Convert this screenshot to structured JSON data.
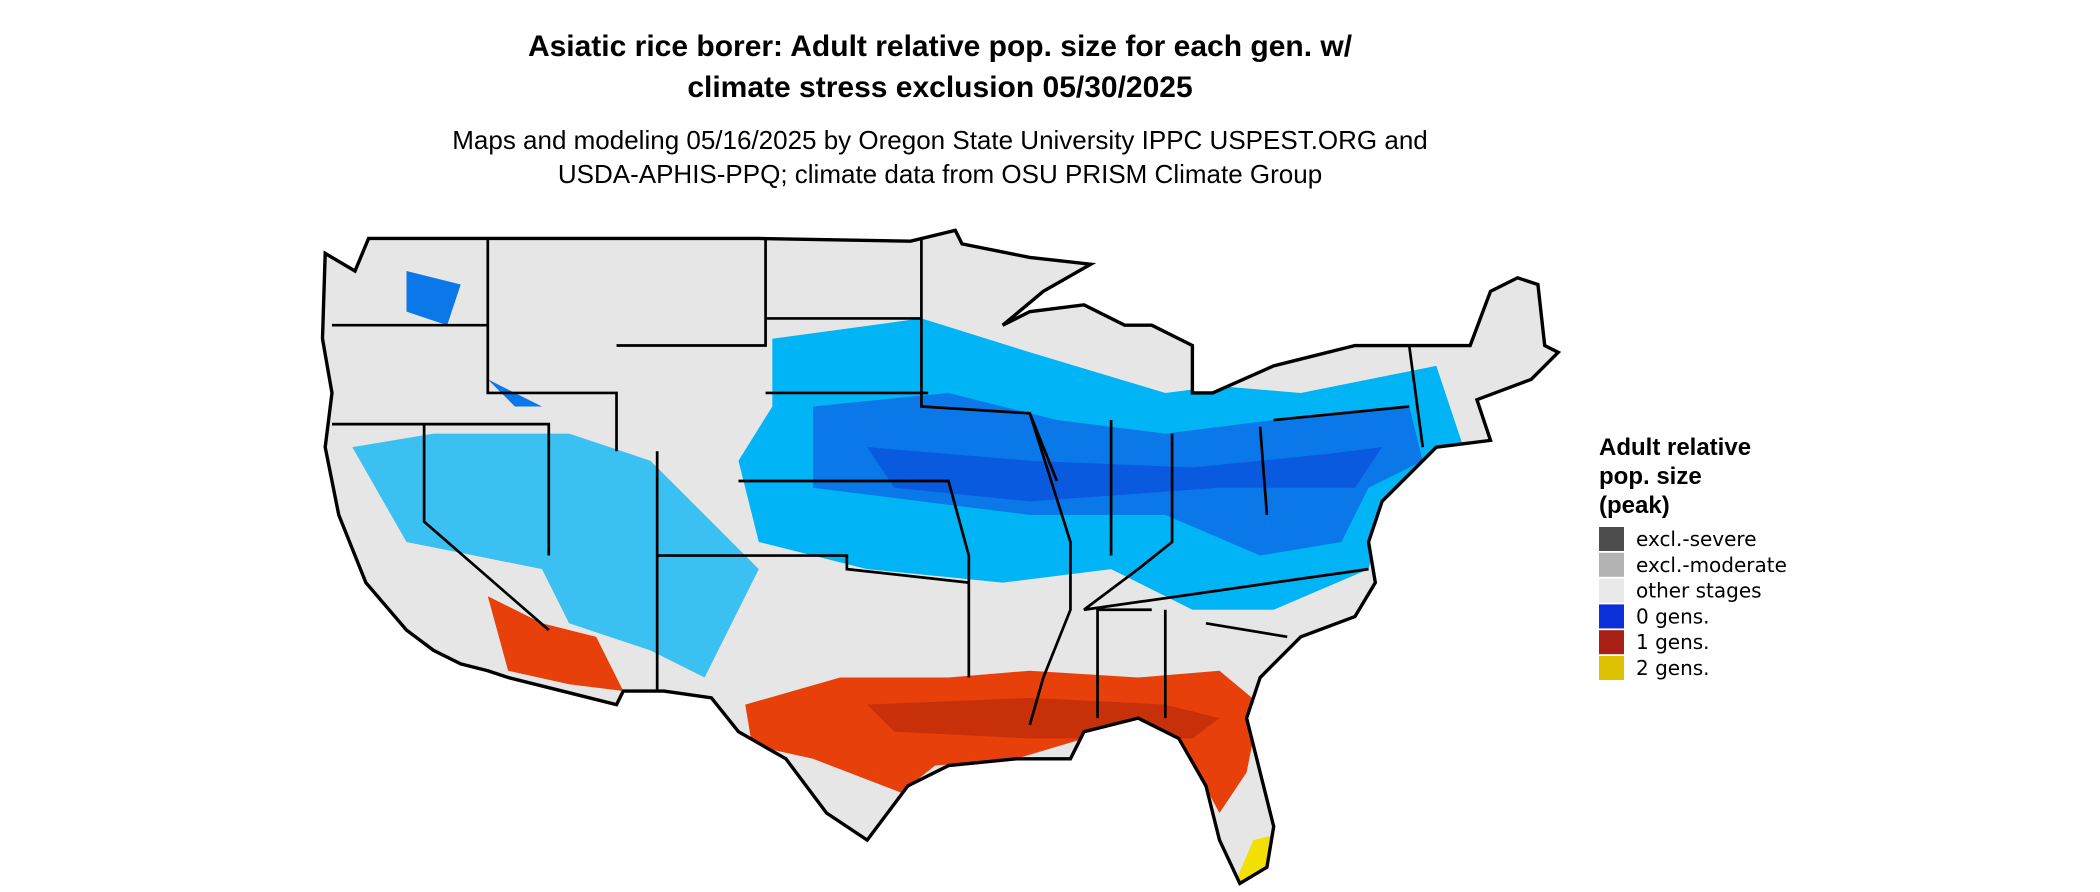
{
  "title": [
    "Asiatic rice borer: Adult relative pop. size for each gen. w/",
    "climate stress exclusion 05/30/2025"
  ],
  "subtitle": [
    "Maps and modeling 05/16/2025 by Oregon State University IPPC USPEST.ORG and",
    "USDA-APHIS-PPQ; climate data from OSU PRISM Climate Group"
  ],
  "legend": {
    "title": [
      "Adult relative",
      "pop. size",
      "(peak)"
    ],
    "items": [
      {
        "label": "excl.-severe",
        "color": "#4d4d4d"
      },
      {
        "label": "excl.-moderate",
        "color": "#b3b3b3"
      },
      {
        "label": "other stages",
        "color": "#e8e8e8"
      },
      {
        "label": "0 gens.",
        "color": "#0b2fd9"
      },
      {
        "label": "1 gens.",
        "color": "#a81f16"
      },
      {
        "label": "2 gens.",
        "color": "#dcc203"
      }
    ]
  }
}
